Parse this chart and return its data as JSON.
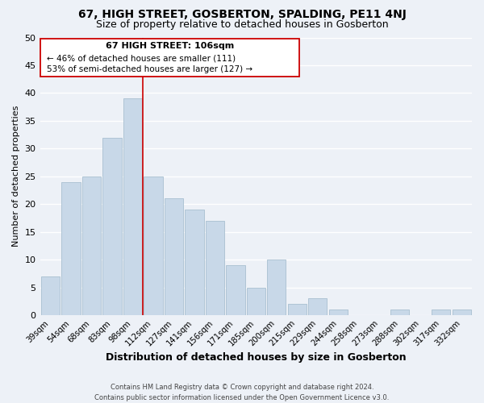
{
  "title": "67, HIGH STREET, GOSBERTON, SPALDING, PE11 4NJ",
  "subtitle": "Size of property relative to detached houses in Gosberton",
  "xlabel": "Distribution of detached houses by size in Gosberton",
  "ylabel": "Number of detached properties",
  "footer_line1": "Contains HM Land Registry data © Crown copyright and database right 2024.",
  "footer_line2": "Contains public sector information licensed under the Open Government Licence v3.0.",
  "categories": [
    "39sqm",
    "54sqm",
    "68sqm",
    "83sqm",
    "98sqm",
    "112sqm",
    "127sqm",
    "141sqm",
    "156sqm",
    "171sqm",
    "185sqm",
    "200sqm",
    "215sqm",
    "229sqm",
    "244sqm",
    "258sqm",
    "273sqm",
    "288sqm",
    "302sqm",
    "317sqm",
    "332sqm"
  ],
  "values": [
    7,
    24,
    25,
    32,
    39,
    25,
    21,
    19,
    17,
    9,
    5,
    10,
    2,
    3,
    1,
    0,
    0,
    1,
    0,
    1,
    1
  ],
  "bar_color": "#c8d8e8",
  "bar_edge_color": "#a8bfd0",
  "vline_x_index": 4.5,
  "vline_color": "#cc0000",
  "annotation_title": "67 HIGH STREET: 106sqm",
  "annotation_line1": "← 46% of detached houses are smaller (111)",
  "annotation_line2": "53% of semi-detached houses are larger (127) →",
  "annotation_box_edge": "#cc0000",
  "ylim": [
    0,
    50
  ],
  "yticks": [
    0,
    5,
    10,
    15,
    20,
    25,
    30,
    35,
    40,
    45,
    50
  ],
  "background_color": "#edf1f7",
  "plot_background": "#edf1f7",
  "grid_color": "#ffffff",
  "title_fontsize": 10,
  "subtitle_fontsize": 9
}
